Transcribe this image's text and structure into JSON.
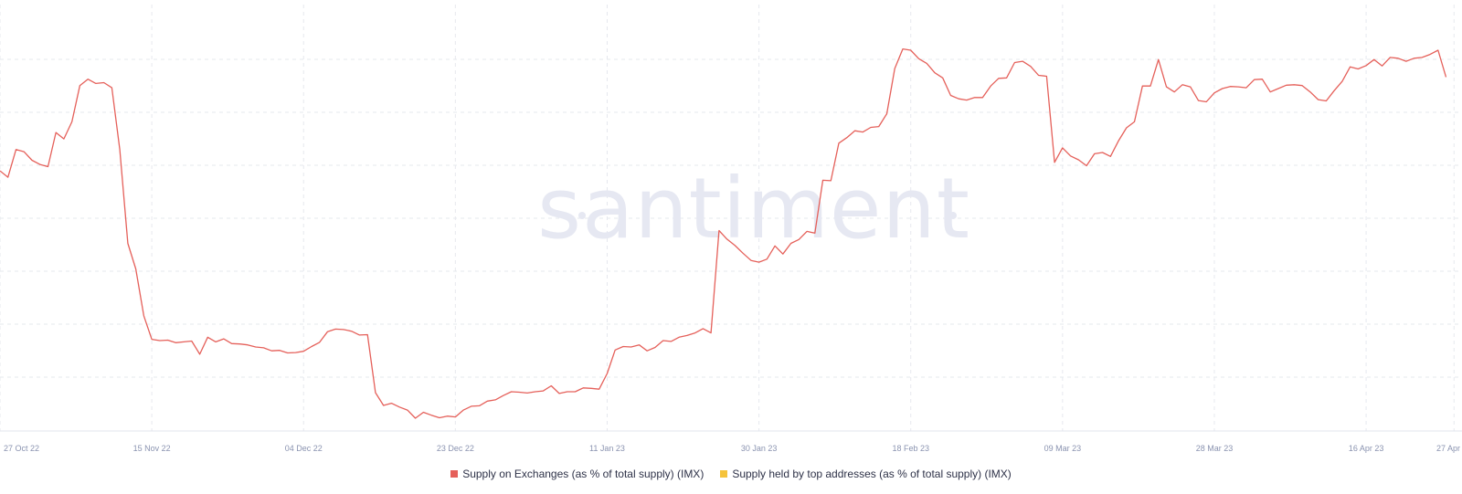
{
  "watermark": "santiment",
  "colors": {
    "series1": "#e5605a",
    "series2": "#f5c33b",
    "grid": "#e6e8ee",
    "tick": "#8a93b0"
  },
  "chart_data": {
    "type": "line",
    "title": "",
    "xlabel": "",
    "ylabel": "",
    "grid": true,
    "legend_placement": "bottom-center",
    "x_ticks": [
      "27 Oct 22",
      "15 Nov 22",
      "04 Dec 22",
      "23 Dec 22",
      "11 Jan 23",
      "30 Jan 23",
      "18 Feb 23",
      "09 Mar 23",
      "28 Mar 23",
      "16 Apr 23",
      "27 Apr"
    ],
    "x_tick_days": [
      0,
      19,
      38,
      57,
      76,
      95,
      114,
      133,
      152,
      171,
      182
    ],
    "ylim": [
      0,
      100
    ],
    "series": [
      {
        "name": "Supply on Exchanges (as % of total supply) (IMX)",
        "color": "#e5605a",
        "day": [
          0,
          1,
          2,
          3,
          4,
          5,
          6,
          7,
          8,
          9,
          10,
          11,
          12,
          13,
          14,
          15,
          16,
          17,
          18,
          19,
          20,
          21,
          22,
          23,
          24,
          25,
          26,
          27,
          28,
          29,
          30,
          31,
          32,
          33,
          34,
          35,
          36,
          37,
          38,
          39,
          40,
          41,
          42,
          43,
          44,
          45,
          46,
          47,
          48,
          49,
          50,
          51,
          52,
          53,
          54,
          55,
          56,
          57,
          58,
          59,
          60,
          61,
          62,
          63,
          64,
          65,
          66,
          67,
          68,
          69,
          70,
          71,
          72,
          73,
          74,
          75,
          76,
          77,
          78,
          79,
          80,
          81,
          82,
          83,
          84,
          85,
          86,
          87,
          88,
          89,
          90,
          91,
          92,
          93,
          94,
          95,
          96,
          97,
          98,
          99,
          100,
          101,
          102,
          103,
          104,
          105,
          106,
          107,
          108,
          109,
          110,
          111,
          112,
          113,
          114,
          115,
          116,
          117,
          118,
          119,
          120,
          121,
          122,
          123,
          124,
          125,
          126,
          127,
          128,
          129,
          130,
          131,
          132,
          133,
          134,
          135,
          136,
          137,
          138,
          139,
          140,
          141,
          142,
          143,
          144,
          145,
          146,
          147,
          148,
          149,
          150,
          151,
          152,
          153,
          154,
          155,
          156,
          157,
          158,
          159,
          160,
          161,
          162,
          163,
          164,
          165,
          166,
          167,
          168,
          169,
          170,
          171,
          172,
          173,
          174,
          175,
          176,
          177,
          178,
          179,
          180,
          181,
          182,
          183
        ],
        "values": [
          61,
          59.5,
          66,
          65.5,
          63.5,
          62.5,
          62,
          70,
          68.5,
          72.5,
          81,
          82.5,
          81.5,
          81.7,
          80.5,
          66,
          44,
          38,
          27,
          21.5,
          21.2,
          21.3,
          20.7,
          20.9,
          21.1,
          18,
          22,
          20.9,
          21.6,
          20.5,
          20.4,
          20.2,
          19.7,
          19.5,
          18.8,
          18.9,
          18.3,
          18.4,
          18.7,
          19.8,
          20.8,
          23.3,
          23.9,
          23.8,
          23.4,
          22.5,
          22.6,
          9,
          6,
          6.5,
          5.6,
          4.9,
          3,
          4.4,
          3.7,
          3.1,
          3.5,
          3.3,
          4.9,
          5.8,
          5.9,
          7,
          7.3,
          8.3,
          9.2,
          9.1,
          8.9,
          9.2,
          9.4,
          10.6,
          8.8,
          9.2,
          9.2,
          10.1,
          10,
          9.8,
          13.5,
          19,
          19.8,
          19.7,
          20.2,
          18.8,
          19.6,
          21.2,
          21,
          22,
          22.4,
          23,
          24,
          23,
          47,
          45,
          43.5,
          41.7,
          40,
          39.6,
          40.3,
          43.4,
          41.5,
          44,
          44.9,
          46.8,
          46.4,
          58.8,
          58.7,
          67.5,
          68.8,
          70.4,
          70.1,
          71.2,
          71.4,
          74.4,
          85,
          89.6,
          89.3,
          87.3,
          86.2,
          84,
          82.8,
          78.7,
          77.9,
          77.6,
          78.2,
          78.2,
          80.9,
          82.7,
          82.8,
          86.4,
          86.7,
          85.5,
          83.4,
          83.2,
          63,
          66.4,
          64.5,
          63.6,
          62.2,
          65,
          65.3,
          64.4,
          68,
          71.1,
          72.5,
          80.9,
          80.9,
          87.1,
          80.7,
          79.5,
          81.2,
          80.7,
          77.5,
          77.2,
          79.3,
          80.3,
          80.8,
          80.7,
          80.5,
          82.4,
          82.5,
          79.5,
          80.3,
          81.1,
          81.2,
          81,
          79.5,
          77.7,
          77.4,
          79.8,
          82,
          85.4,
          84.9,
          85.7,
          87.1,
          85.6,
          87.6,
          87.4,
          86.7,
          87.4,
          87.6,
          88.3,
          89.3,
          83
        ]
      },
      {
        "name": "Supply held by top addresses (as % of total supply) (IMX)",
        "color": "#f5c33b",
        "day": [],
        "values": []
      }
    ]
  }
}
